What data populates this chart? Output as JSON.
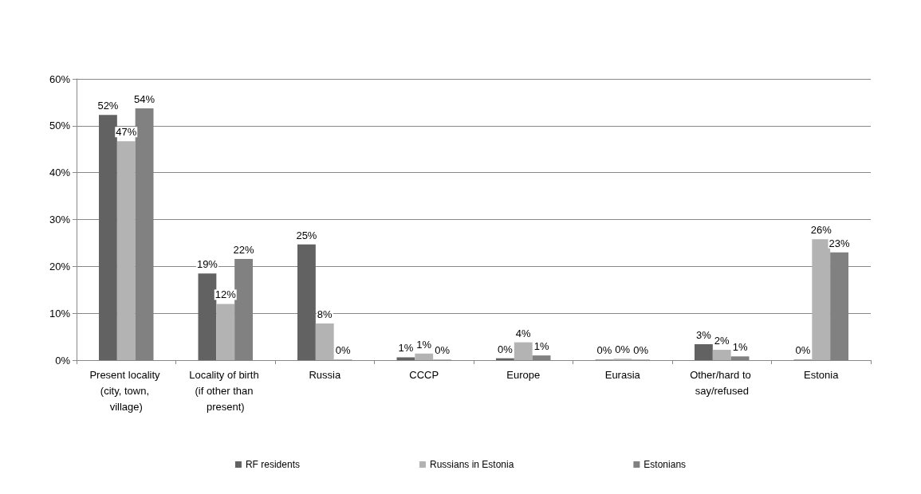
{
  "chart_data": {
    "type": "bar",
    "categories": [
      "Present locality (city, town, village)",
      "Locality of birth (if other than present)",
      "Russia",
      "CCCP",
      "Europe",
      "Eurasia",
      "Other/hard to say/refused",
      "Estonia"
    ],
    "series": [
      {
        "name": "RF residents",
        "color": "#626262",
        "values": [
          52.3,
          18.5,
          24.7,
          0.6,
          0.4,
          0.1,
          3.4,
          0.1
        ],
        "value_labels": [
          "52%",
          "19%",
          "25%",
          "1%",
          "0%",
          "0%",
          "3%",
          "0%"
        ]
      },
      {
        "name": "Russians in Estonia",
        "color": "#b3b3b3",
        "values": [
          46.7,
          12.0,
          7.8,
          1.4,
          3.8,
          0.3,
          2.2,
          25.8
        ],
        "value_labels": [
          "47%",
          "12%",
          "8%",
          "1%",
          "4%",
          "0%",
          "2%",
          "26%"
        ]
      },
      {
        "name": "Estonians",
        "color": "#818181",
        "values": [
          53.7,
          21.6,
          0.1,
          0.1,
          1.0,
          0.1,
          0.8,
          23.0
        ],
        "value_labels": [
          "54%",
          "22%",
          "0%",
          "0%",
          "1%",
          "0%",
          "1%",
          "23%"
        ]
      }
    ],
    "ylim": [
      0,
      60
    ],
    "yticks": [
      {
        "value": 0,
        "label": "0%"
      },
      {
        "value": 10,
        "label": "10%"
      },
      {
        "value": 20,
        "label": "20%"
      },
      {
        "value": 30,
        "label": "30%"
      },
      {
        "value": 40,
        "label": "40%"
      },
      {
        "value": 50,
        "label": "50%"
      },
      {
        "value": 60,
        "label": "60%"
      }
    ],
    "grid": "y",
    "legend": "bottom"
  }
}
